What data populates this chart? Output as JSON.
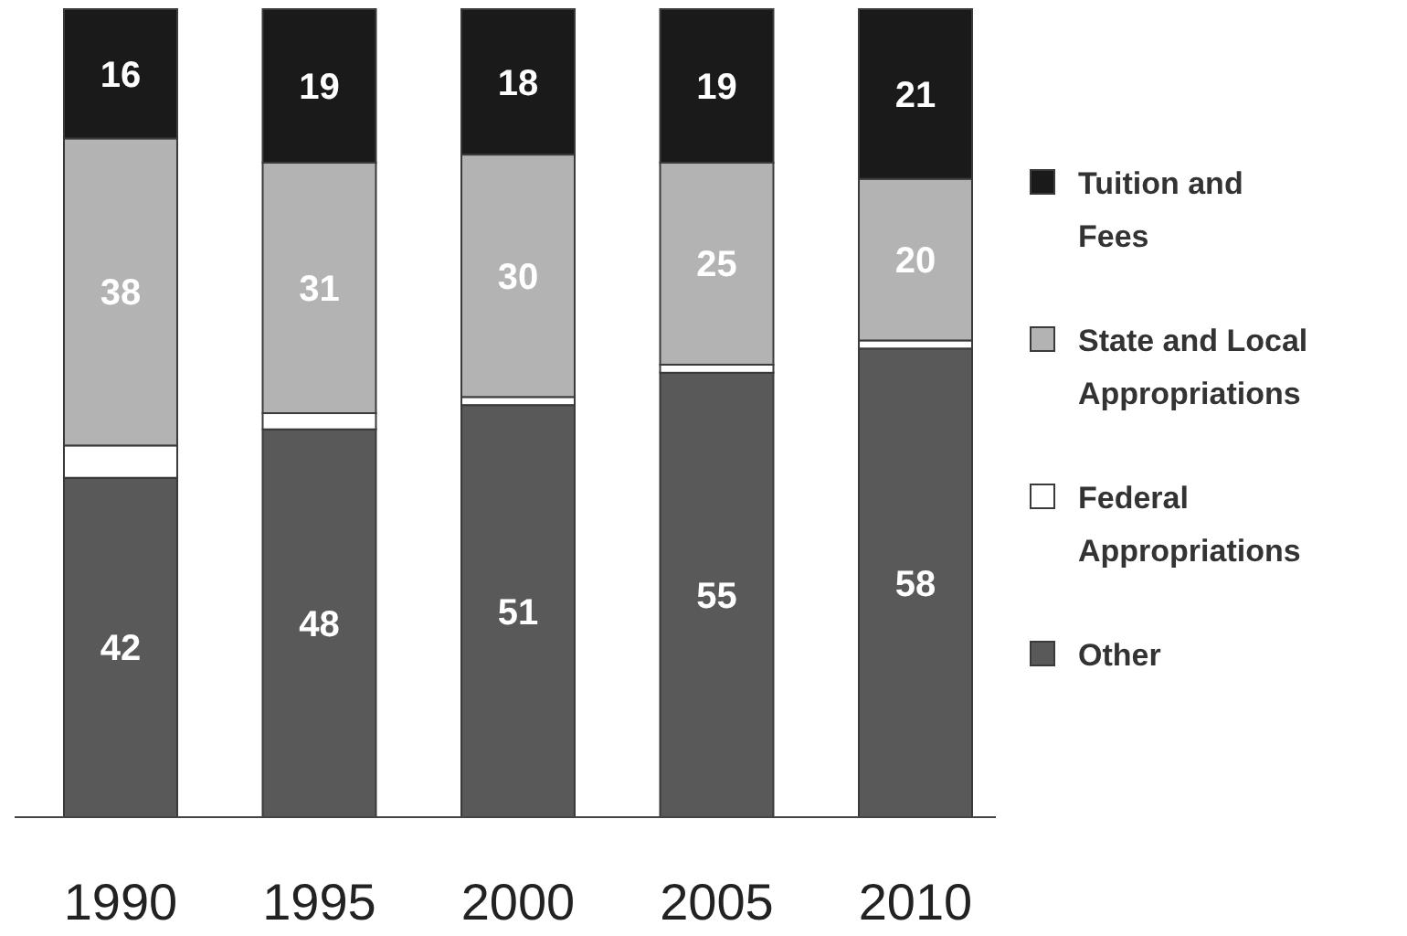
{
  "chart_data": {
    "type": "bar",
    "stacked": true,
    "categories": [
      "1990",
      "1995",
      "2000",
      "2005",
      "2010"
    ],
    "ylim": [
      0,
      100
    ],
    "tick_labels": "x",
    "legend": "right",
    "series": [
      {
        "name": "Other",
        "color": "#595959",
        "values": [
          42,
          48,
          51,
          55,
          58
        ],
        "value_labels": [
          "42",
          "48",
          "51",
          "55",
          "58"
        ]
      },
      {
        "name": "Federal Appropriations",
        "color": "#ffffff",
        "values": [
          4,
          2,
          1,
          1,
          1
        ],
        "value_labels": [
          null,
          null,
          null,
          null,
          null
        ]
      },
      {
        "name": "State and Local Appropriations",
        "color": "#b3b3b3",
        "values": [
          38,
          31,
          30,
          25,
          20
        ],
        "value_labels": [
          "38",
          "31",
          "30",
          "25",
          "20"
        ]
      },
      {
        "name": "Tuition and Fees",
        "color": "#1a1a1a",
        "values": [
          16,
          19,
          18,
          19,
          21
        ],
        "value_labels": [
          "16",
          "19",
          "18",
          "19",
          "21"
        ]
      }
    ]
  }
}
